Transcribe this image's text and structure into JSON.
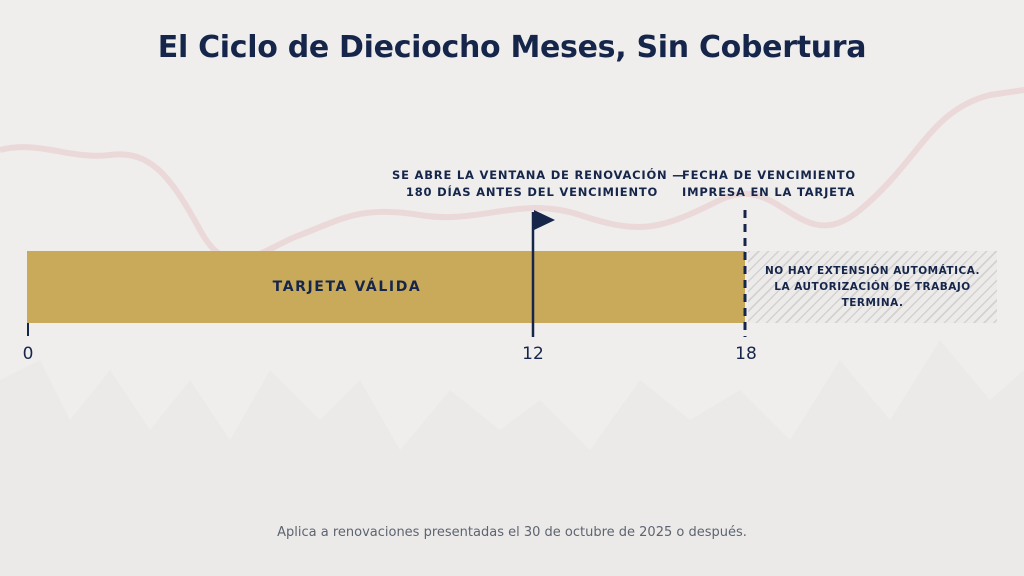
{
  "title": "El Ciclo de Dieciocho Meses, Sin Cobertura",
  "annotations": {
    "renewal_line1": "SE ABRE LA VENTANA DE RENOVACIÓN —",
    "renewal_line2": "180 DÍAS ANTES DEL VENCIMIENTO",
    "expiry_line1": "FECHA DE VENCIMIENTO",
    "expiry_line2": "IMPRESA EN LA TARJETA"
  },
  "bars": {
    "valid_label": "TARJETA VÁLIDA",
    "void_line1": "NO HAY EXTENSIÓN AUTOMÁTICA.",
    "void_line2": "LA AUTORIZACIÓN DE TRABAJO TERMINA."
  },
  "ticks": {
    "t0": "0",
    "t12": "12",
    "t18": "18"
  },
  "footnote": "Aplica a renovaciones presentadas el 30 de octubre de 2025 o después.",
  "colors": {
    "background": "#efeeed",
    "navy": "#16264a",
    "gold": "#c9a95a",
    "hatch": "#b9b9b9"
  }
}
